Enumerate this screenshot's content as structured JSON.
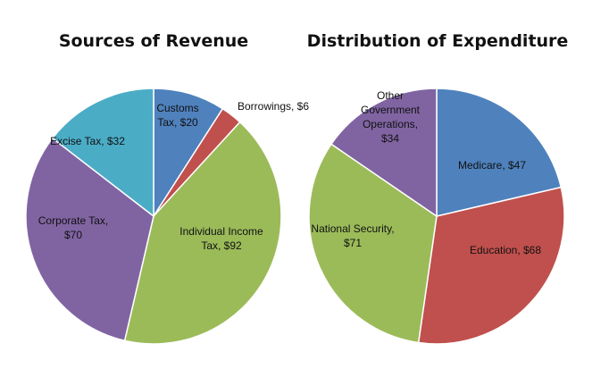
{
  "chart_data": [
    {
      "type": "pie",
      "title": "Sources of Revenue",
      "slices": [
        {
          "label": [
            "Customs",
            "Tax,  $20"
          ],
          "name": "Customs Tax",
          "value": 20,
          "color": "#4F81BD"
        },
        {
          "label": [
            "Borrowings,  $6"
          ],
          "name": "Borrowings",
          "value": 6,
          "color": "#C0504D"
        },
        {
          "label": [
            "Individual Income",
            "Tax,  $92"
          ],
          "name": "Individual Income Tax",
          "value": 92,
          "color": "#9BBB59"
        },
        {
          "label": [
            "Corporate Tax,",
            "$70"
          ],
          "name": "Corporate Tax",
          "value": 70,
          "color": "#8064A2"
        },
        {
          "label": [
            "Excise Tax,  $32"
          ],
          "name": "Excise Tax",
          "value": 32,
          "color": "#4BACC6"
        }
      ]
    },
    {
      "type": "pie",
      "title": "Distribution of Expenditure",
      "slices": [
        {
          "label": [
            "Medicare,  $47"
          ],
          "name": "Medicare",
          "value": 47,
          "color": "#4F81BD"
        },
        {
          "label": [
            "Education,  $68"
          ],
          "name": "Education",
          "value": 68,
          "color": "#C0504D"
        },
        {
          "label": [
            "National Security,",
            "$71"
          ],
          "name": "National Security",
          "value": 71,
          "color": "#9BBB59"
        },
        {
          "label": [
            "Other",
            "Government",
            "Operations,",
            "$34"
          ],
          "name": "Other Government Operations",
          "value": 34,
          "color": "#8064A2"
        }
      ]
    }
  ]
}
